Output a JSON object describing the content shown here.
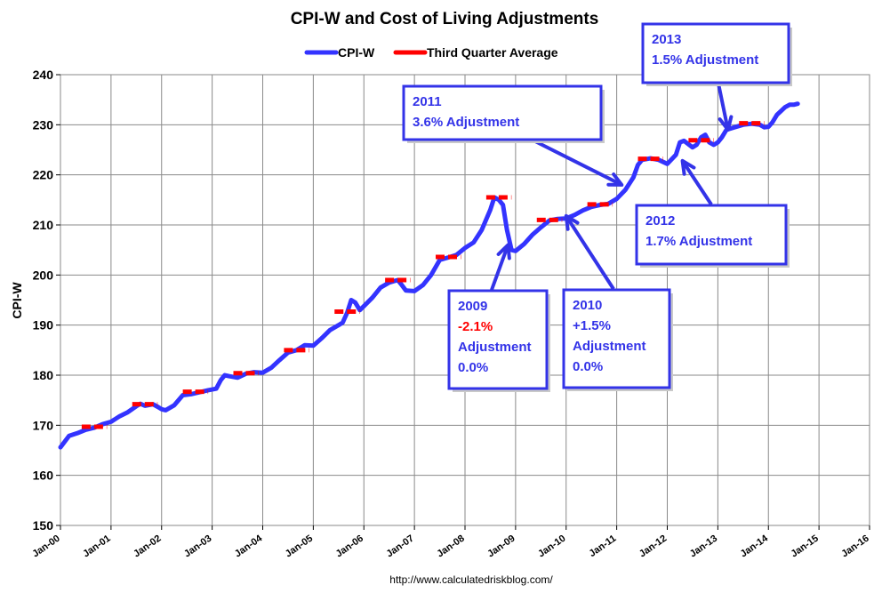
{
  "chart_data": {
    "type": "line",
    "title": "CPI-W and Cost of Living Adjustments",
    "ylabel": "CPI-W",
    "xlabel": "",
    "ylim": [
      150,
      240
    ],
    "yticks": [
      150,
      160,
      170,
      180,
      190,
      200,
      210,
      220,
      230,
      240
    ],
    "xlim": [
      2000,
      2016
    ],
    "xticks": [
      "Jan-00",
      "Jan-01",
      "Jan-02",
      "Jan-03",
      "Jan-04",
      "Jan-05",
      "Jan-06",
      "Jan-07",
      "Jan-08",
      "Jan-09",
      "Jan-10",
      "Jan-11",
      "Jan-12",
      "Jan-13",
      "Jan-14",
      "Jan-15",
      "Jan-16"
    ],
    "grid": true,
    "legend_position": "top-center",
    "source": "http://www.calculatedriskblog.com/",
    "series": [
      {
        "name": "CPI-W",
        "color": "#3333ff",
        "points": [
          [
            2000.0,
            165.6
          ],
          [
            2000.17,
            167.9
          ],
          [
            2000.33,
            168.4
          ],
          [
            2000.5,
            169.1
          ],
          [
            2000.67,
            169.5
          ],
          [
            2000.83,
            170.2
          ],
          [
            2001.0,
            170.7
          ],
          [
            2001.17,
            171.8
          ],
          [
            2001.33,
            172.6
          ],
          [
            2001.5,
            173.8
          ],
          [
            2001.58,
            174.3
          ],
          [
            2001.67,
            173.9
          ],
          [
            2001.83,
            174.2
          ],
          [
            2001.92,
            173.7
          ],
          [
            2002.0,
            173.2
          ],
          [
            2002.08,
            173.0
          ],
          [
            2002.25,
            174.0
          ],
          [
            2002.42,
            176.0
          ],
          [
            2002.58,
            176.2
          ],
          [
            2002.75,
            176.6
          ],
          [
            2002.92,
            177.0
          ],
          [
            2003.08,
            177.3
          ],
          [
            2003.17,
            179.0
          ],
          [
            2003.25,
            180.0
          ],
          [
            2003.33,
            179.8
          ],
          [
            2003.5,
            179.5
          ],
          [
            2003.67,
            180.3
          ],
          [
            2003.83,
            180.6
          ],
          [
            2004.0,
            180.5
          ],
          [
            2004.17,
            181.5
          ],
          [
            2004.33,
            183.0
          ],
          [
            2004.5,
            184.5
          ],
          [
            2004.67,
            185.0
          ],
          [
            2004.83,
            186.0
          ],
          [
            2005.0,
            185.9
          ],
          [
            2005.17,
            187.4
          ],
          [
            2005.33,
            189.0
          ],
          [
            2005.5,
            190.0
          ],
          [
            2005.58,
            190.5
          ],
          [
            2005.67,
            192.5
          ],
          [
            2005.75,
            195.0
          ],
          [
            2005.83,
            194.5
          ],
          [
            2005.92,
            193.0
          ],
          [
            2006.0,
            193.8
          ],
          [
            2006.17,
            195.5
          ],
          [
            2006.33,
            197.5
          ],
          [
            2006.5,
            198.5
          ],
          [
            2006.67,
            199.0
          ],
          [
            2006.75,
            198.0
          ],
          [
            2006.83,
            196.9
          ],
          [
            2007.0,
            196.8
          ],
          [
            2007.17,
            198.0
          ],
          [
            2007.33,
            200.0
          ],
          [
            2007.5,
            203.0
          ],
          [
            2007.67,
            203.5
          ],
          [
            2007.83,
            204.0
          ],
          [
            2008.0,
            205.4
          ],
          [
            2008.17,
            206.5
          ],
          [
            2008.33,
            209.0
          ],
          [
            2008.5,
            213.0
          ],
          [
            2008.58,
            215.5
          ],
          [
            2008.67,
            215.0
          ],
          [
            2008.75,
            214.0
          ],
          [
            2008.83,
            209.0
          ],
          [
            2008.92,
            205.0
          ],
          [
            2009.0,
            204.8
          ],
          [
            2009.17,
            206.2
          ],
          [
            2009.33,
            208.0
          ],
          [
            2009.5,
            209.5
          ],
          [
            2009.67,
            210.9
          ],
          [
            2009.83,
            211.2
          ],
          [
            2010.0,
            211.3
          ],
          [
            2010.17,
            212.0
          ],
          [
            2010.33,
            212.9
          ],
          [
            2010.5,
            213.6
          ],
          [
            2010.67,
            214.0
          ],
          [
            2010.83,
            214.2
          ],
          [
            2011.0,
            215.2
          ],
          [
            2011.17,
            217.0
          ],
          [
            2011.33,
            219.5
          ],
          [
            2011.42,
            222.0
          ],
          [
            2011.5,
            223.0
          ],
          [
            2011.67,
            223.3
          ],
          [
            2011.83,
            223.0
          ],
          [
            2012.0,
            222.2
          ],
          [
            2012.17,
            224.0
          ],
          [
            2012.25,
            226.5
          ],
          [
            2012.33,
            226.8
          ],
          [
            2012.5,
            225.5
          ],
          [
            2012.58,
            226.0
          ],
          [
            2012.67,
            227.5
          ],
          [
            2012.75,
            228.0
          ],
          [
            2012.83,
            226.5
          ],
          [
            2012.92,
            226.0
          ],
          [
            2013.0,
            226.5
          ],
          [
            2013.08,
            227.5
          ],
          [
            2013.17,
            229.0
          ],
          [
            2013.33,
            229.5
          ],
          [
            2013.5,
            230.0
          ],
          [
            2013.67,
            230.2
          ],
          [
            2013.83,
            230.0
          ],
          [
            2013.92,
            229.5
          ],
          [
            2014.0,
            229.6
          ],
          [
            2014.08,
            230.5
          ],
          [
            2014.17,
            232.0
          ],
          [
            2014.33,
            233.5
          ],
          [
            2014.42,
            234.0
          ],
          [
            2014.5,
            234.0
          ],
          [
            2014.58,
            234.2
          ]
        ]
      },
      {
        "name": "Third Quarter Average",
        "color": "#ff0000",
        "segments": [
          {
            "x0": 2000.42,
            "x1": 2000.92,
            "y": 169.7
          },
          {
            "x0": 2001.42,
            "x1": 2001.92,
            "y": 174.2
          },
          {
            "x0": 2002.42,
            "x1": 2002.92,
            "y": 176.7
          },
          {
            "x0": 2003.42,
            "x1": 2003.92,
            "y": 180.4
          },
          {
            "x0": 2004.42,
            "x1": 2004.92,
            "y": 185.0
          },
          {
            "x0": 2005.42,
            "x1": 2005.92,
            "y": 192.7
          },
          {
            "x0": 2006.42,
            "x1": 2006.92,
            "y": 199.0
          },
          {
            "x0": 2007.42,
            "x1": 2007.92,
            "y": 203.6
          },
          {
            "x0": 2008.42,
            "x1": 2008.92,
            "y": 215.5
          },
          {
            "x0": 2009.42,
            "x1": 2009.92,
            "y": 211.0
          },
          {
            "x0": 2010.42,
            "x1": 2010.92,
            "y": 214.1
          },
          {
            "x0": 2011.42,
            "x1": 2011.92,
            "y": 223.2
          },
          {
            "x0": 2012.42,
            "x1": 2012.92,
            "y": 226.9
          },
          {
            "x0": 2013.42,
            "x1": 2013.92,
            "y": 230.3
          }
        ]
      }
    ],
    "annotations": [
      {
        "id": "2011",
        "lines": [
          "2011",
          " 3.6% Adjustment"
        ],
        "negative_line": -1,
        "arrow_to": [
          2011.1,
          218.0
        ]
      },
      {
        "id": "2013",
        "lines": [
          "2013",
          "1.5% Adjustment"
        ],
        "negative_line": -1,
        "arrow_to": [
          2013.2,
          229.0
        ]
      },
      {
        "id": "2012",
        "lines": [
          "2012",
          "1.7% Adjustment"
        ],
        "negative_line": -1,
        "arrow_to": [
          2012.3,
          222.8
        ]
      },
      {
        "id": "2009",
        "lines": [
          "2009",
          "-2.1%",
          "Adjustment",
          "0.0%"
        ],
        "negative_line": 1,
        "arrow_to": [
          2008.85,
          206.0
        ]
      },
      {
        "id": "2010",
        "lines": [
          "2010",
          "+1.5%",
          "Adjustment",
          "0.0%"
        ],
        "negative_line": -1,
        "arrow_to": [
          2010.0,
          211.8
        ]
      }
    ]
  }
}
